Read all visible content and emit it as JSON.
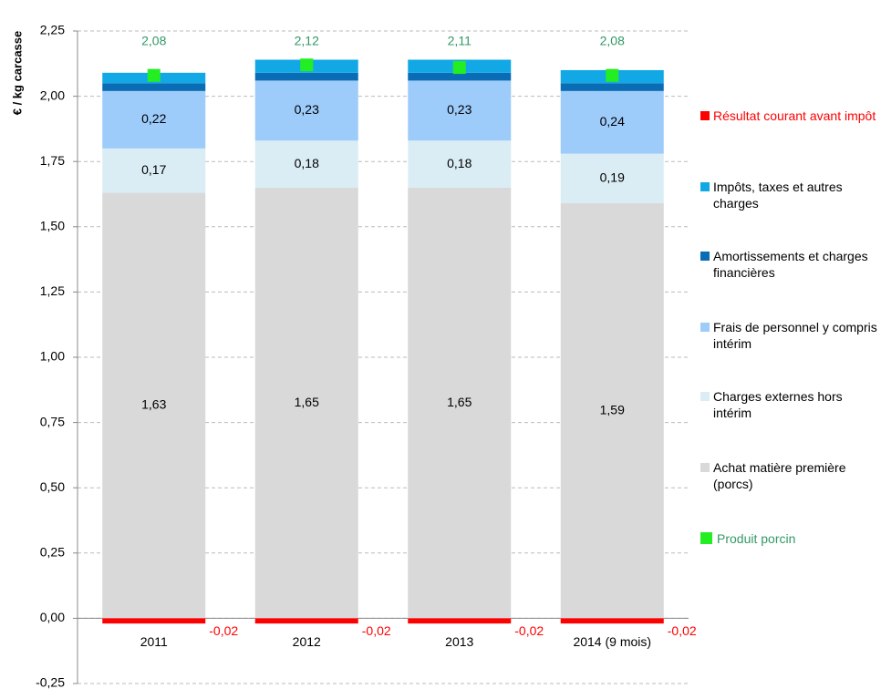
{
  "chart_data": {
    "type": "bar",
    "stacked": true,
    "y_label": "€ / kg carcasse",
    "categories": [
      "2011",
      "2012",
      "2013",
      "2014 (9 mois)"
    ],
    "ylim": [
      -0.25,
      2.25
    ],
    "yticks": [
      {
        "value": -0.25,
        "label": "-0,25"
      },
      {
        "value": 0,
        "label": "0,00"
      },
      {
        "value": 0.25,
        "label": "0,25"
      },
      {
        "value": 0.5,
        "label": "0,50"
      },
      {
        "value": 0.75,
        "label": "0,75"
      },
      {
        "value": 1,
        "label": "1,00"
      },
      {
        "value": 1.25,
        "label": "1,25"
      },
      {
        "value": 1.5,
        "label": "1,50"
      },
      {
        "value": 1.75,
        "label": "1,75"
      },
      {
        "value": 2,
        "label": "2,00"
      },
      {
        "value": 2.25,
        "label": "2,25"
      }
    ],
    "grid": true,
    "legend": "right",
    "series": [
      {
        "name": "Résultat courant avant impôt",
        "color": "#ff0000",
        "values": [
          -0.02,
          -0.02,
          -0.02,
          -0.02
        ],
        "value_labels": [
          "-0,02",
          "-0,02",
          "-0,02",
          "-0,02"
        ]
      },
      {
        "name": "Impôts, taxes et autres charges",
        "color": "#12a8e6",
        "values": [
          0.04,
          0.05,
          0.05,
          0.05
        ]
      },
      {
        "name": "Amortissements et charges financières",
        "color": "#0a6cb4",
        "values": [
          0.03,
          0.03,
          0.03,
          0.03
        ]
      },
      {
        "name": "Frais de personnel y compris intérim",
        "color": "#9dcbfa",
        "values": [
          0.22,
          0.23,
          0.23,
          0.24
        ],
        "value_labels": [
          "0,22",
          "0,23",
          "0,23",
          "0,24"
        ]
      },
      {
        "name": "Charges externes hors intérim",
        "color": "#dbedf4",
        "values": [
          0.17,
          0.18,
          0.18,
          0.19
        ],
        "value_labels": [
          "0,17",
          "0,18",
          "0,18",
          "0,19"
        ]
      },
      {
        "name": "Achat matière première (porcs)",
        "color": "#d9d9d9",
        "values": [
          1.63,
          1.65,
          1.65,
          1.59
        ],
        "value_labels": [
          "1,63",
          "1,65",
          "1,65",
          "1,59"
        ]
      },
      {
        "name": "Produit porcin",
        "type": "scatter",
        "color": "#22ee22",
        "label_color": "#339966",
        "values": [
          2.08,
          2.12,
          2.11,
          2.08
        ],
        "value_labels": [
          "2,08",
          "2,12",
          "2,11",
          "2,08"
        ]
      }
    ]
  }
}
